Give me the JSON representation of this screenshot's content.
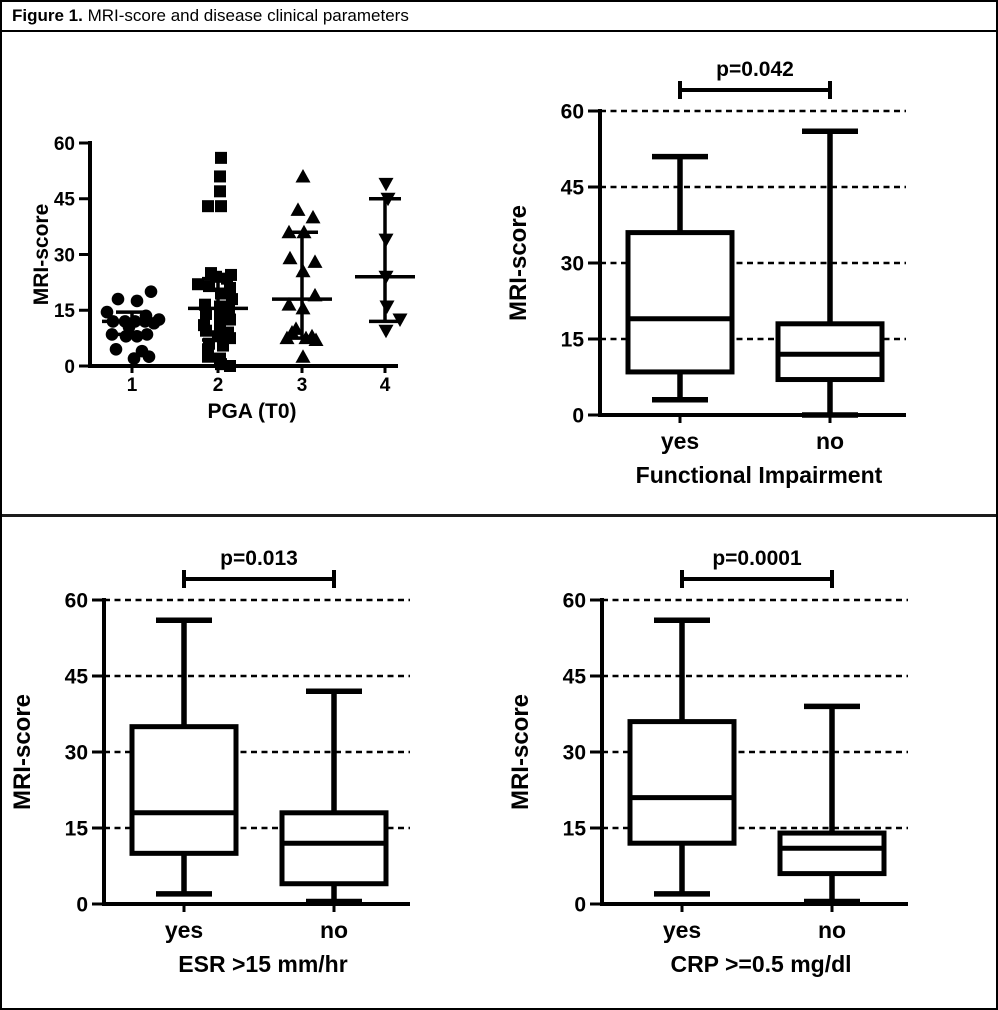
{
  "figure": {
    "label": "Figure 1.",
    "title": " MRI-score and disease clinical parameters"
  },
  "colors": {
    "ink": "#000000",
    "background": "#ffffff"
  },
  "chart_data": [
    {
      "id": "pga-scatter",
      "type": "scatter",
      "title": "",
      "xlabel": "PGA (T0)",
      "ylabel": "MRI-score",
      "ylim": [
        0,
        60
      ],
      "yticks": [
        0,
        15,
        30,
        45,
        60
      ],
      "grid": false,
      "categories": [
        "1",
        "2",
        "3",
        "4"
      ],
      "series": [
        {
          "category": "1",
          "marker": "circle",
          "median": 12,
          "q1": 8.5,
          "q3": 14.5,
          "points": [
            [
              20,
              19
            ],
            [
              18,
              -14
            ],
            [
              17.5,
              5
            ],
            [
              14.5,
              -25
            ],
            [
              13.5,
              14
            ],
            [
              12.5,
              27
            ],
            [
              12,
              -19
            ],
            [
              12,
              -7
            ],
            [
              12,
              3
            ],
            [
              12,
              13
            ],
            [
              11.5,
              22
            ],
            [
              10.5,
              -3
            ],
            [
              8.5,
              -20
            ],
            [
              8.5,
              15
            ],
            [
              8,
              -6
            ],
            [
              8,
              5
            ],
            [
              4.5,
              -16
            ],
            [
              4,
              10
            ],
            [
              2.5,
              17
            ],
            [
              2,
              2
            ]
          ]
        },
        {
          "category": "2",
          "marker": "square",
          "median": 15.5,
          "q1": 7,
          "q3": 23.5,
          "points": [
            [
              56,
              3
            ],
            [
              51,
              2
            ],
            [
              47,
              2
            ],
            [
              43,
              -10
            ],
            [
              43,
              3
            ],
            [
              25,
              -7
            ],
            [
              24.5,
              13
            ],
            [
              24,
              -2
            ],
            [
              23.5,
              9
            ],
            [
              22,
              -20
            ],
            [
              21.5,
              -9
            ],
            [
              21,
              12
            ],
            [
              19.5,
              3
            ],
            [
              18,
              14
            ],
            [
              16.5,
              -13
            ],
            [
              16,
              2
            ],
            [
              15,
              11
            ],
            [
              14,
              -12
            ],
            [
              13,
              2
            ],
            [
              12.5,
              12
            ],
            [
              11,
              -14
            ],
            [
              10.5,
              2
            ],
            [
              9.5,
              -12
            ],
            [
              9,
              10
            ],
            [
              8,
              0
            ],
            [
              7.5,
              12
            ],
            [
              6,
              -9
            ],
            [
              5.5,
              5
            ],
            [
              4.5,
              -10
            ],
            [
              2.5,
              -10
            ],
            [
              2,
              2
            ],
            [
              0.5,
              3
            ],
            [
              0,
              12
            ]
          ]
        },
        {
          "category": "3",
          "marker": "triangle-up",
          "median": 18,
          "q1": 7.5,
          "q3": 36,
          "points": [
            [
              51,
              1
            ],
            [
              42,
              -4
            ],
            [
              40,
              11
            ],
            [
              36,
              -13
            ],
            [
              36,
              2
            ],
            [
              29,
              -12
            ],
            [
              28,
              13
            ],
            [
              25.5,
              1
            ],
            [
              19,
              13
            ],
            [
              16.5,
              -13
            ],
            [
              15.5,
              1
            ],
            [
              10,
              -6
            ],
            [
              9,
              -10
            ],
            [
              8,
              10
            ],
            [
              7.5,
              -15
            ],
            [
              7.5,
              4
            ],
            [
              7,
              14
            ],
            [
              2.5,
              1
            ]
          ]
        },
        {
          "category": "4",
          "marker": "triangle-down",
          "median": 24,
          "q1": 12,
          "q3": 45,
          "points": [
            [
              49,
              1
            ],
            [
              45,
              3
            ],
            [
              34,
              1
            ],
            [
              24,
              1
            ],
            [
              16,
              2
            ],
            [
              12.5,
              15
            ],
            [
              9.5,
              1
            ]
          ]
        }
      ]
    },
    {
      "id": "functional-impairment",
      "type": "box",
      "p_label": "p=0.042",
      "xlabel": "Functional Impairment",
      "ylabel": "MRI-score",
      "ylim": [
        0,
        60
      ],
      "yticks": [
        0,
        15,
        30,
        45,
        60
      ],
      "grid": true,
      "categories": [
        "yes",
        "no"
      ],
      "boxes": [
        {
          "category": "yes",
          "min": 3,
          "q1": 8.5,
          "median": 19,
          "q3": 36,
          "max": 51
        },
        {
          "category": "no",
          "min": 0,
          "q1": 7,
          "median": 12,
          "q3": 18,
          "max": 56
        }
      ]
    },
    {
      "id": "esr",
      "type": "box",
      "p_label": "p=0.013",
      "xlabel": "ESR >15 mm/hr",
      "ylabel": "MRI-score",
      "ylim": [
        0,
        60
      ],
      "yticks": [
        0,
        15,
        30,
        45,
        60
      ],
      "grid": true,
      "categories": [
        "yes",
        "no"
      ],
      "boxes": [
        {
          "category": "yes",
          "min": 2,
          "q1": 10,
          "median": 18,
          "q3": 35,
          "max": 56
        },
        {
          "category": "no",
          "min": 0.5,
          "q1": 4,
          "median": 12,
          "q3": 18,
          "max": 42
        }
      ]
    },
    {
      "id": "crp",
      "type": "box",
      "p_label": "p=0.0001",
      "xlabel": "CRP >=0.5 mg/dl",
      "ylabel": "MRI-score",
      "ylim": [
        0,
        60
      ],
      "yticks": [
        0,
        15,
        30,
        45,
        60
      ],
      "grid": true,
      "categories": [
        "yes",
        "no"
      ],
      "boxes": [
        {
          "category": "yes",
          "min": 2,
          "q1": 12,
          "median": 21,
          "q3": 36,
          "max": 56
        },
        {
          "category": "no",
          "min": 0.5,
          "q1": 6,
          "median": 11,
          "q3": 14,
          "max": 39
        }
      ]
    }
  ]
}
